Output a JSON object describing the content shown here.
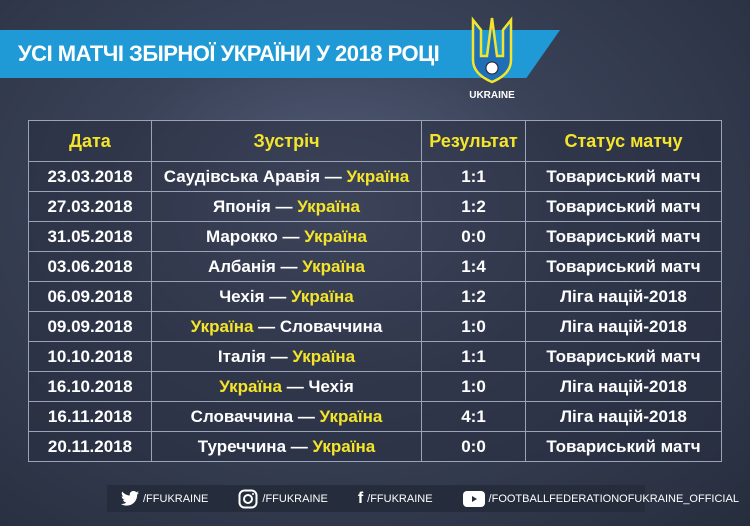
{
  "title": "УСІ МАТЧІ ЗБІРНОЇ УКРАЇНИ У 2018 РОЦІ",
  "logo_text": "UKRAINE",
  "colors": {
    "banner": "#1f9ad6",
    "highlight": "#f5e52a"
  },
  "table": {
    "headers": [
      "Дата",
      "Зустріч",
      "Результат",
      "Статус матчу"
    ],
    "separator": " — ",
    "rows": [
      {
        "date": "23.03.2018",
        "home": "Саудівська Аравія",
        "away": "Україна",
        "ukraine": "away",
        "result": "1:1",
        "status": "Товариський матч"
      },
      {
        "date": "27.03.2018",
        "home": "Японія",
        "away": "Україна",
        "ukraine": "away",
        "result": "1:2",
        "status": "Товариський матч"
      },
      {
        "date": "31.05.2018",
        "home": "Марокко",
        "away": "Україна",
        "ukraine": "away",
        "result": "0:0",
        "status": "Товариський матч"
      },
      {
        "date": "03.06.2018",
        "home": "Албанія",
        "away": "Україна",
        "ukraine": "away",
        "result": "1:4",
        "status": "Товариський матч"
      },
      {
        "date": "06.09.2018",
        "home": "Чехія",
        "away": "Україна",
        "ukraine": "away",
        "result": "1:2",
        "status": "Ліга націй-2018"
      },
      {
        "date": "09.09.2018",
        "home": "Україна",
        "away": "Словаччина",
        "ukraine": "home",
        "result": "1:0",
        "status": "Ліга націй-2018"
      },
      {
        "date": "10.10.2018",
        "home": "Італія",
        "away": "Україна",
        "ukraine": "away",
        "result": "1:1",
        "status": "Товариський матч"
      },
      {
        "date": "16.10.2018",
        "home": "Україна",
        "away": "Чехія",
        "ukraine": "home",
        "result": "1:0",
        "status": "Ліга націй-2018"
      },
      {
        "date": "16.11.2018",
        "home": "Словаччина",
        "away": "Україна",
        "ukraine": "away",
        "result": "4:1",
        "status": "Ліга націй-2018"
      },
      {
        "date": "20.11.2018",
        "home": "Туреччина",
        "away": "Україна",
        "ukraine": "away",
        "result": "0:0",
        "status": "Товариський матч"
      }
    ]
  },
  "footer": [
    {
      "icon": "twitter-icon",
      "label": "/FFUKRAINE"
    },
    {
      "icon": "instagram-icon",
      "label": "/FFUKRAINE"
    },
    {
      "icon": "facebook-icon",
      "label": "/FFUKRAINE"
    },
    {
      "icon": "youtube-icon",
      "label": "/FOOTBALLFEDERATIONOFUKRAINE_OFFICIAL"
    }
  ]
}
